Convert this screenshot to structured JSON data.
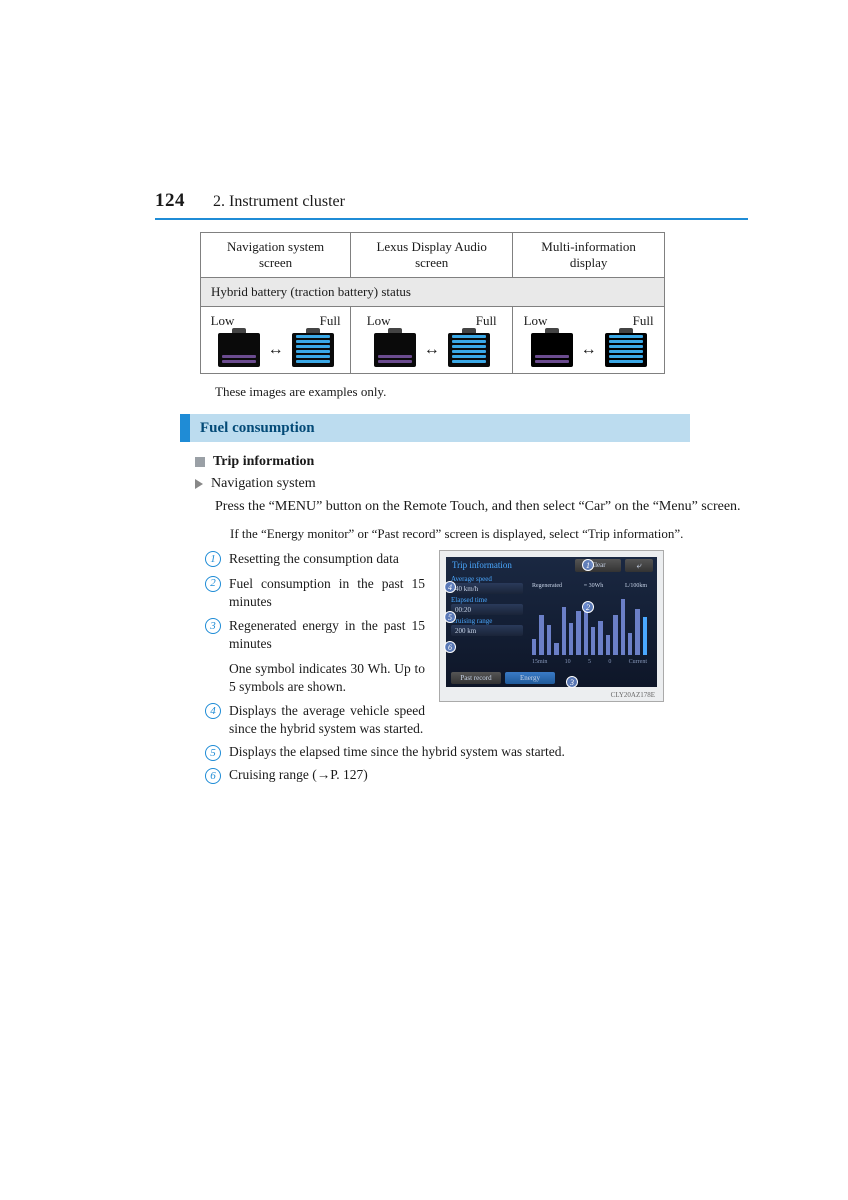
{
  "page": {
    "number": "124",
    "section": "2. Instrument cluster"
  },
  "table": {
    "headers": [
      "Navigation system screen",
      "Lexus Display Audio screen",
      "Multi-information display"
    ],
    "subheader": "Hybrid battery (traction battery) status",
    "cell_labels": {
      "low": "Low",
      "full": "Full"
    },
    "note": "These images are examples only."
  },
  "section_bar": "Fuel consumption",
  "trip": {
    "heading": "Trip information",
    "nav_system": "Navigation system",
    "instruction": "Press the “MENU” button on the Remote Touch, and then select “Car” on the “Menu” screen.",
    "sub_instruction": "If the “Energy monitor” or “Past record” screen is displayed, select “Trip information”."
  },
  "items": {
    "1": "Resetting the consumption data",
    "2": "Fuel consumption in the past 15 minutes",
    "3": "Regenerated energy in the past 15 minutes",
    "3b": "One symbol indicates 30 Wh. Up to 5 symbols are shown.",
    "4": "Displays the average vehicle speed since the hybrid system was started.",
    "5": "Displays the elapsed time since the hybrid system was started.",
    "6": "Cruising range (→P. 127)"
  },
  "screenshot": {
    "title": "Trip information",
    "clear": "Clear",
    "regenerated": "Regenerated",
    "unit_wh": "= 30Wh",
    "unit_l": "L/100km",
    "avg_speed_label": "Average speed",
    "avg_speed_val": "40 km/h",
    "elapsed_label": "Elapsed time",
    "elapsed_val": "00:20",
    "range_label": "Cruising range",
    "range_val": "200 km",
    "past_record": "Past record",
    "energy": "Energy",
    "axis": [
      "15min",
      "10",
      "5",
      "0",
      "Current"
    ],
    "bars": [
      16,
      40,
      30,
      12,
      48,
      32,
      44,
      52,
      28,
      34,
      20,
      40,
      56,
      22,
      46,
      38
    ],
    "caption": "CLY20AZ178E"
  },
  "colors": {
    "accent_blue": "#1f8cd6",
    "section_bg": "#bcdcef",
    "section_text": "#034a77"
  }
}
